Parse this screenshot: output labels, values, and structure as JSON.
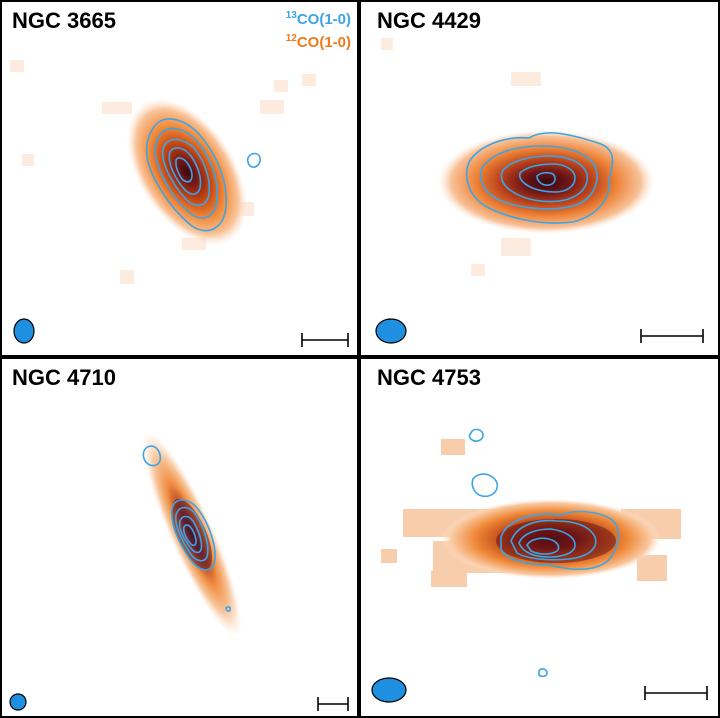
{
  "legend": {
    "isotope_13": "13",
    "line_13": "CO(1-0)",
    "isotope_12": "12",
    "line_12": "CO(1-0)"
  },
  "colors": {
    "contour": "#3aa5e6",
    "beam": "#1f8fe0",
    "emission_low": "#fde3cc",
    "emission_mid": "#f07a18",
    "emission_high": "#5a0f1a"
  },
  "panels": [
    {
      "name": "NGC 3665"
    },
    {
      "name": "NGC 4429"
    },
    {
      "name": "NGC 4710"
    },
    {
      "name": "NGC 4753"
    }
  ]
}
